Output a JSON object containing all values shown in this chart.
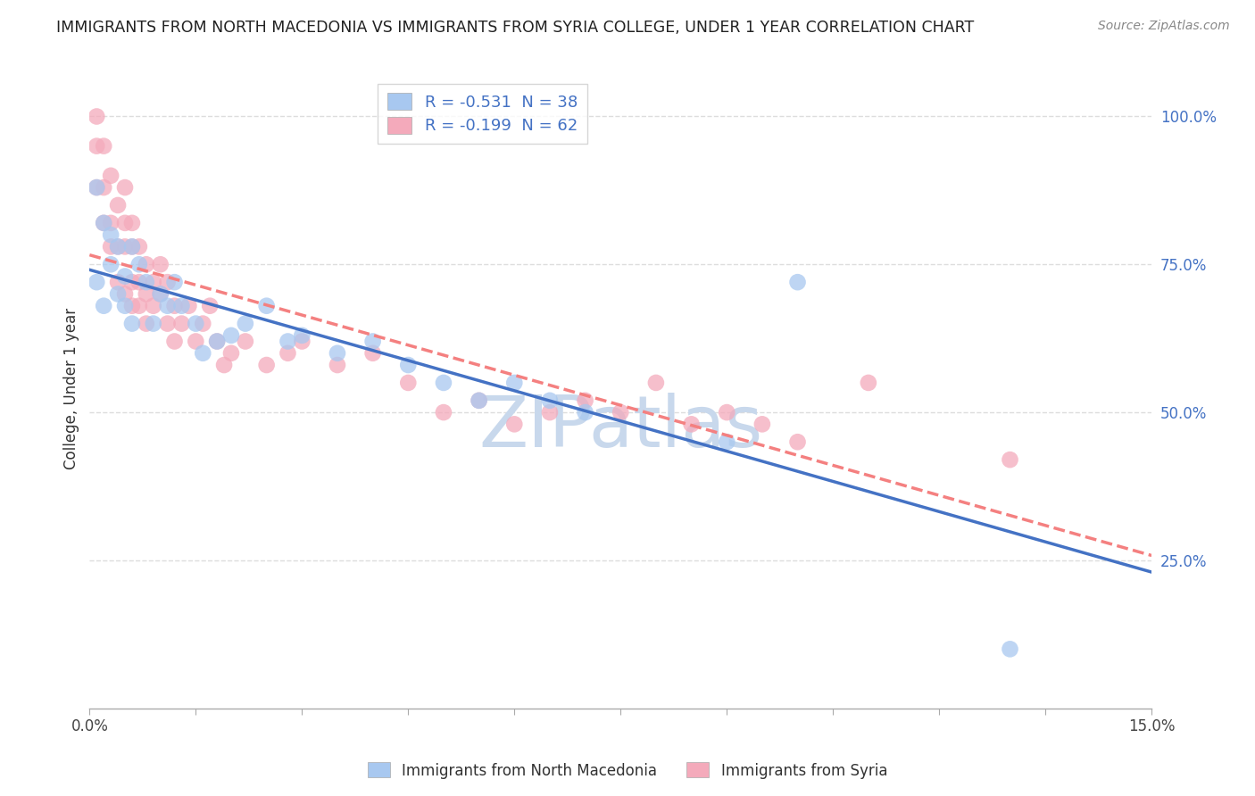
{
  "title": "IMMIGRANTS FROM NORTH MACEDONIA VS IMMIGRANTS FROM SYRIA COLLEGE, UNDER 1 YEAR CORRELATION CHART",
  "source": "Source: ZipAtlas.com",
  "ylabel": "College, Under 1 year",
  "legend_label_blue": "Immigrants from North Macedonia",
  "legend_label_pink": "Immigrants from Syria",
  "R_blue": -0.531,
  "N_blue": 38,
  "R_pink": -0.199,
  "N_pink": 62,
  "color_blue": "#A8C8F0",
  "color_pink": "#F4AABB",
  "line_color_blue": "#4472C4",
  "line_color_pink": "#F48080",
  "xmin": 0.0,
  "xmax": 0.15,
  "ymin": 0.0,
  "ymax": 1.08,
  "yticks": [
    0.25,
    0.5,
    0.75,
    1.0
  ],
  "ytick_labels": [
    "25.0%",
    "50.0%",
    "75.0%",
    "100.0%"
  ],
  "xticks": [
    0.0,
    0.015,
    0.03,
    0.045,
    0.06,
    0.075,
    0.09,
    0.105,
    0.12,
    0.135,
    0.15
  ],
  "xtick_labels_visible": [
    "0.0%",
    "",
    "",
    "",
    "",
    "",
    "",
    "",
    "",
    "",
    "15.0%"
  ],
  "blue_x": [
    0.001,
    0.001,
    0.002,
    0.002,
    0.003,
    0.003,
    0.004,
    0.004,
    0.005,
    0.005,
    0.006,
    0.006,
    0.007,
    0.008,
    0.009,
    0.01,
    0.011,
    0.012,
    0.013,
    0.015,
    0.016,
    0.018,
    0.02,
    0.022,
    0.025,
    0.028,
    0.03,
    0.035,
    0.04,
    0.045,
    0.05,
    0.055,
    0.06,
    0.065,
    0.07,
    0.09,
    0.1,
    0.13
  ],
  "blue_y": [
    0.88,
    0.72,
    0.82,
    0.68,
    0.8,
    0.75,
    0.78,
    0.7,
    0.73,
    0.68,
    0.78,
    0.65,
    0.75,
    0.72,
    0.65,
    0.7,
    0.68,
    0.72,
    0.68,
    0.65,
    0.6,
    0.62,
    0.63,
    0.65,
    0.68,
    0.62,
    0.63,
    0.6,
    0.62,
    0.58,
    0.55,
    0.52,
    0.55,
    0.52,
    0.5,
    0.45,
    0.72,
    0.1
  ],
  "pink_x": [
    0.001,
    0.001,
    0.001,
    0.002,
    0.002,
    0.002,
    0.003,
    0.003,
    0.003,
    0.004,
    0.004,
    0.004,
    0.005,
    0.005,
    0.005,
    0.005,
    0.006,
    0.006,
    0.006,
    0.006,
    0.007,
    0.007,
    0.007,
    0.008,
    0.008,
    0.008,
    0.009,
    0.009,
    0.01,
    0.01,
    0.011,
    0.011,
    0.012,
    0.012,
    0.013,
    0.014,
    0.015,
    0.016,
    0.017,
    0.018,
    0.019,
    0.02,
    0.022,
    0.025,
    0.028,
    0.03,
    0.035,
    0.04,
    0.045,
    0.05,
    0.055,
    0.06,
    0.065,
    0.07,
    0.075,
    0.08,
    0.085,
    0.09,
    0.095,
    0.1,
    0.11,
    0.13
  ],
  "pink_y": [
    1.0,
    0.95,
    0.88,
    0.95,
    0.88,
    0.82,
    0.9,
    0.82,
    0.78,
    0.85,
    0.78,
    0.72,
    0.88,
    0.82,
    0.78,
    0.7,
    0.82,
    0.78,
    0.72,
    0.68,
    0.78,
    0.72,
    0.68,
    0.75,
    0.7,
    0.65,
    0.72,
    0.68,
    0.75,
    0.7,
    0.72,
    0.65,
    0.68,
    0.62,
    0.65,
    0.68,
    0.62,
    0.65,
    0.68,
    0.62,
    0.58,
    0.6,
    0.62,
    0.58,
    0.6,
    0.62,
    0.58,
    0.6,
    0.55,
    0.5,
    0.52,
    0.48,
    0.5,
    0.52,
    0.5,
    0.55,
    0.48,
    0.5,
    0.48,
    0.45,
    0.55,
    0.42
  ],
  "watermark": "ZIPatlas",
  "watermark_color": "#C8D8EC",
  "background_color": "#FFFFFF",
  "grid_color": "#DDDDDD"
}
